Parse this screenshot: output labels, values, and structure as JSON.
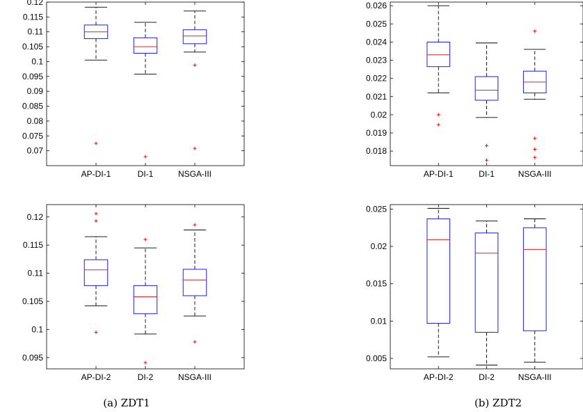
{
  "captions": [
    "(a)  ZDT1",
    "(b)  ZDT2"
  ],
  "colors": {
    "box": "#1a1aff",
    "median": "#e02020",
    "whisker": "#000000",
    "outlier": "#ff0000"
  },
  "chart_data": [
    {
      "type": "box",
      "panel": "ZDT1 top",
      "categories": [
        "AP-DI-1",
        "DI-1",
        "NSGA-III"
      ],
      "ylim": [
        0.065,
        0.12
      ],
      "yticks": [
        0.07,
        0.075,
        0.08,
        0.085,
        0.09,
        0.095,
        0.1,
        0.105,
        0.11,
        0.115,
        0.12
      ],
      "ytick_labels": [
        "0.07",
        "0.075",
        "0.08",
        "0.085",
        "0.09",
        "0.095",
        "0.1",
        "0.105",
        "0.11",
        "0.115",
        "0.12"
      ],
      "boxes": [
        {
          "whislo": 0.1005,
          "q1": 0.1077,
          "med": 0.11,
          "q3": 0.1123,
          "whishi": 0.1183,
          "fliers": [
            0.0725
          ]
        },
        {
          "whislo": 0.0958,
          "q1": 0.1028,
          "med": 0.105,
          "q3": 0.108,
          "whishi": 0.1132,
          "fliers": [
            0.068
          ]
        },
        {
          "whislo": 0.1032,
          "q1": 0.106,
          "med": 0.1086,
          "q3": 0.1107,
          "whishi": 0.117,
          "fliers": [
            0.0988,
            0.0708
          ]
        }
      ]
    },
    {
      "type": "box",
      "panel": "ZDT2 top",
      "categories": [
        "AP-DI-1",
        "DI-1",
        "NSGA-III"
      ],
      "ylim": [
        0.0172,
        0.0262
      ],
      "yticks": [
        0.018,
        0.019,
        0.02,
        0.021,
        0.022,
        0.023,
        0.024,
        0.025,
        0.026
      ],
      "ytick_labels": [
        "0.018",
        "0.019",
        "0.02",
        "0.021",
        "0.022",
        "0.023",
        "0.024",
        "0.025",
        "0.026"
      ],
      "boxes": [
        {
          "whislo": 0.0212,
          "q1": 0.02265,
          "med": 0.0233,
          "q3": 0.024,
          "whishi": 0.026,
          "fliers": [
            0.02,
            0.01945
          ]
        },
        {
          "whislo": 0.01985,
          "q1": 0.0208,
          "med": 0.02135,
          "q3": 0.0221,
          "whishi": 0.02395,
          "fliers": [
            0.0183,
            0.0175
          ]
        },
        {
          "whislo": 0.02085,
          "q1": 0.0212,
          "med": 0.0218,
          "q3": 0.0224,
          "whishi": 0.0236,
          "fliers": [
            0.0246,
            0.0187,
            0.0181,
            0.01765
          ]
        }
      ]
    },
    {
      "type": "box",
      "panel": "ZDT1 bottom",
      "categories": [
        "AP-DI-2",
        "DI-2",
        "NSGA-III"
      ],
      "ylim": [
        0.093,
        0.1222
      ],
      "yticks": [
        0.095,
        0.1,
        0.105,
        0.11,
        0.115,
        0.12
      ],
      "ytick_labels": [
        "0.095",
        "0.1",
        "0.105",
        "0.11",
        "0.115",
        "0.12"
      ],
      "boxes": [
        {
          "whislo": 0.1042,
          "q1": 0.1078,
          "med": 0.1106,
          "q3": 0.1124,
          "whishi": 0.1165,
          "fliers": [
            0.1206,
            0.1193,
            0.0995
          ]
        },
        {
          "whislo": 0.0992,
          "q1": 0.1028,
          "med": 0.1058,
          "q3": 0.1078,
          "whishi": 0.1145,
          "fliers": [
            0.116,
            0.0941
          ]
        },
        {
          "whislo": 0.1024,
          "q1": 0.106,
          "med": 0.1088,
          "q3": 0.1107,
          "whishi": 0.1177,
          "fliers": [
            0.1186,
            0.0978
          ]
        }
      ]
    },
    {
      "type": "box",
      "panel": "ZDT2 bottom",
      "categories": [
        "AP-DI-2",
        "DI-2",
        "NSGA-III"
      ],
      "ylim": [
        0.0036,
        0.0256
      ],
      "yticks": [
        0.005,
        0.01,
        0.015,
        0.02,
        0.025
      ],
      "ytick_labels": [
        "0.005",
        "0.01",
        "0.015",
        "0.02",
        "0.025"
      ],
      "boxes": [
        {
          "whislo": 0.0052,
          "q1": 0.0097,
          "med": 0.0209,
          "q3": 0.0237,
          "whishi": 0.0251,
          "fliers": []
        },
        {
          "whislo": 0.0041,
          "q1": 0.0085,
          "med": 0.0191,
          "q3": 0.0218,
          "whishi": 0.0234,
          "fliers": []
        },
        {
          "whislo": 0.0045,
          "q1": 0.0087,
          "med": 0.0196,
          "q3": 0.0225,
          "whishi": 0.0237,
          "fliers": []
        }
      ]
    }
  ]
}
